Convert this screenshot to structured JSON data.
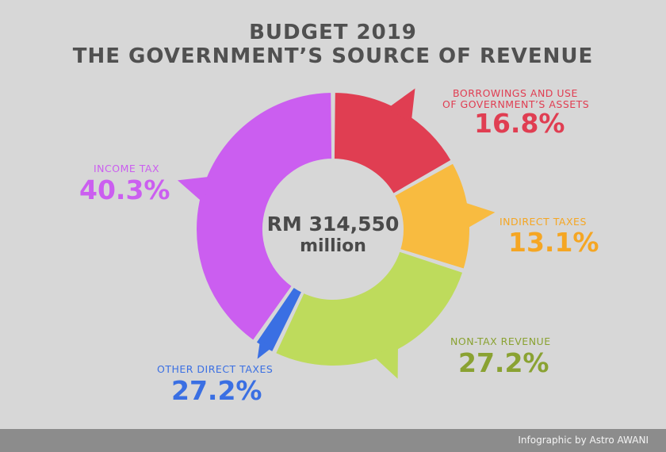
{
  "chart_data": {
    "type": "pie",
    "title": "BUDGET 2019",
    "subtitle": "THE GOVERNMENT’S SOURCE OF REVENUE",
    "center_value": "RM 314,550",
    "center_unit": "million",
    "slices": [
      {
        "label": "BORROWINGS AND USE",
        "label2": "OF GOVERNMENT’S ASSETS",
        "value": 16.8,
        "display": "16.8%",
        "color": "#e03e52"
      },
      {
        "label": "INDIRECT TAXES",
        "value": 13.1,
        "display": "13.1%",
        "color": "#f8bb40",
        "text_color": "#f5a623"
      },
      {
        "label": "NON-TAX REVENUE",
        "value": 27.2,
        "display": "27.2%",
        "color": "#bedb5c",
        "text_color": "#8aa232"
      },
      {
        "label": "OTHER DIRECT TAXES",
        "value": 27.2,
        "display": "27.2%",
        "color": "#3a6fe3"
      },
      {
        "label": "INCOME TAX",
        "value": 40.3,
        "display": "40.3%",
        "color": "#cb5ef0"
      }
    ]
  },
  "footer": {
    "credit": "Infographic by Astro AWANI"
  }
}
